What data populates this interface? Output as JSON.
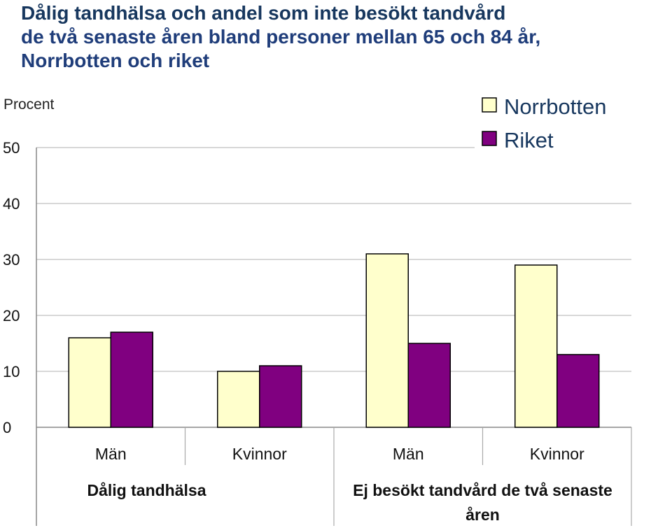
{
  "title_lines": [
    "Dålig tandhälsa och andel som inte besökt tandvård",
    "de två senaste åren bland  personer mellan 65 och 84 år,",
    "Norrbotten och riket"
  ],
  "colors": {
    "norrbotten": "#ffffcc",
    "riket": "#800080",
    "title": "#17375e",
    "grid": "#c0c0c0"
  },
  "chart_data": {
    "type": "bar",
    "ylabel": "Procent",
    "ylim": [
      0,
      50
    ],
    "yticks": [
      0,
      10,
      20,
      30,
      40,
      50
    ],
    "grid": true,
    "legend_position": "top-right",
    "categories": [
      "Män",
      "Kvinnor",
      "Män",
      "Kvinnor"
    ],
    "groups": [
      {
        "label": "Dålig tandhälsa",
        "categories": [
          0,
          1
        ]
      },
      {
        "label": "Ej besökt tandvård de två senaste åren",
        "categories": [
          2,
          3
        ]
      }
    ],
    "series": [
      {
        "name": "Norrbotten",
        "values": [
          16,
          10,
          31,
          29
        ]
      },
      {
        "name": "Riket",
        "values": [
          17,
          11,
          15,
          13
        ]
      }
    ]
  }
}
